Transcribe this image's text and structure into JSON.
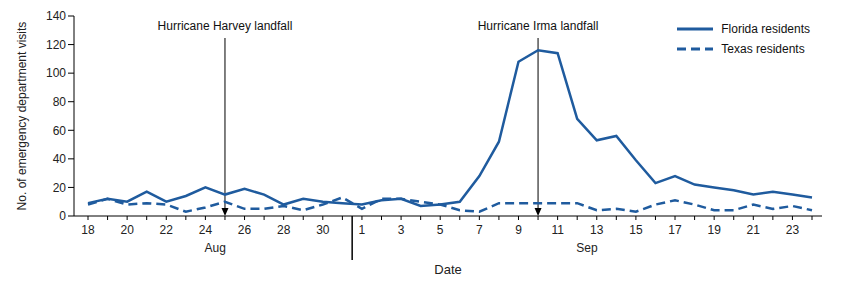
{
  "chart_data": {
    "type": "line",
    "x_label": "Date",
    "y_label": "No. of emergency department visits",
    "categories": [
      "18",
      null,
      "20",
      null,
      "22",
      null,
      "24",
      null,
      "26",
      null,
      "28",
      null,
      "30",
      null,
      "1",
      null,
      "3",
      null,
      "5",
      null,
      "7",
      null,
      "9",
      null,
      "11",
      null,
      "13",
      null,
      "15",
      null,
      "17",
      null,
      "19",
      null,
      "21",
      null,
      "23",
      null
    ],
    "months": [
      "Aug",
      "Aug",
      "Aug",
      "Aug",
      "Aug",
      "Aug",
      "Aug",
      "Aug",
      "Aug",
      "Aug",
      "Aug",
      "Aug",
      "Aug",
      "Aug",
      "Sep",
      "Sep",
      "Sep",
      "Sep",
      "Sep",
      "Sep",
      "Sep",
      "Sep",
      "Sep",
      "Sep",
      "Sep",
      "Sep",
      "Sep",
      "Sep",
      "Sep",
      "Sep",
      "Sep",
      "Sep",
      "Sep",
      "Sep",
      "Sep",
      "Sep",
      "Sep",
      "Sep"
    ],
    "series": [
      {
        "name": "Florida residents",
        "color": "#1f5b9e",
        "line_style": "solid",
        "values": [
          9,
          12,
          10,
          17,
          10,
          14,
          20,
          15,
          19,
          15,
          8,
          12,
          10,
          9,
          8,
          11,
          12,
          7,
          8,
          10,
          28,
          52,
          108,
          116,
          114,
          68,
          53,
          56,
          39,
          23,
          28,
          22,
          20,
          18,
          15,
          17,
          15,
          13
        ]
      },
      {
        "name": "Texas residents",
        "color": "#1f5b9e",
        "line_style": "dashed",
        "values": [
          8,
          12,
          8,
          9,
          8,
          3,
          6,
          10,
          5,
          5,
          7,
          4,
          8,
          13,
          5,
          12,
          12,
          10,
          8,
          4,
          3,
          9,
          9,
          9,
          9,
          9,
          4,
          5,
          3,
          8,
          11,
          8,
          4,
          4,
          8,
          5,
          7,
          4
        ]
      }
    ],
    "annotations": [
      {
        "text": "Hurricane Harvey landfall",
        "index": 7
      },
      {
        "text": "Hurricane Irma landfall",
        "index": 23
      }
    ],
    "ylim": [
      0,
      140
    ],
    "yticks": [
      0,
      20,
      40,
      60,
      80,
      100,
      120,
      140
    ],
    "grid": false,
    "legend": "upper right"
  }
}
